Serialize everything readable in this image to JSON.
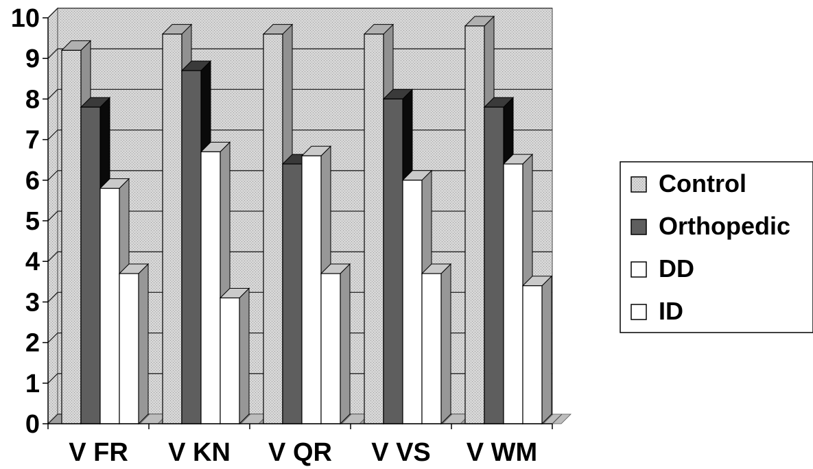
{
  "chart_data": {
    "type": "bar",
    "categories": [
      "V FR",
      "V KN",
      "V QR",
      "V VS",
      "V WM"
    ],
    "series": [
      {
        "name": "Control",
        "values": [
          9.2,
          9.6,
          9.6,
          9.6,
          9.8
        ],
        "color": "#cfcfcf"
      },
      {
        "name": "Orthopedic",
        "values": [
          7.8,
          8.7,
          6.4,
          8.0,
          7.8
        ],
        "color": "#5e5e5e"
      },
      {
        "name": "DD",
        "values": [
          5.8,
          6.7,
          6.6,
          6.0,
          6.4
        ],
        "color": "#ffffff"
      },
      {
        "name": "ID",
        "values": [
          3.7,
          3.1,
          3.7,
          3.7,
          3.4
        ],
        "color": "#ffffff"
      }
    ],
    "ylim": [
      0,
      10
    ],
    "yticks": [
      "0",
      "1",
      "2",
      "3",
      "4",
      "5",
      "6",
      "7",
      "8",
      "9",
      "10"
    ],
    "grid": true,
    "legend": "right",
    "three_d": true
  }
}
